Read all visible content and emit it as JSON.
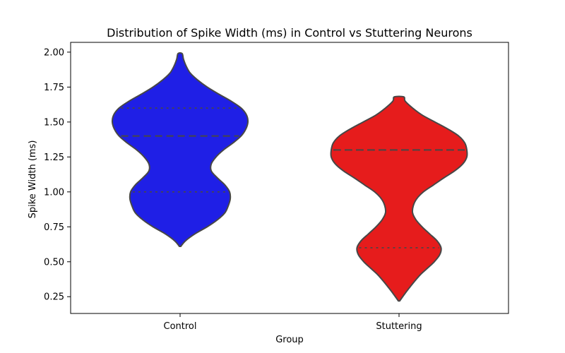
{
  "chart_data": {
    "type": "violin",
    "title": "Distribution of Spike Width (ms) in Control vs Stuttering Neurons",
    "xlabel": "Group",
    "ylabel": "Spike Width (ms)",
    "ylim": [
      0.13,
      2.07
    ],
    "yticks": [
      0.25,
      0.5,
      0.75,
      1.0,
      1.25,
      1.5,
      1.75,
      2.0
    ],
    "ytick_labels": [
      "0.25",
      "0.50",
      "0.75",
      "1.00",
      "1.25",
      "1.50",
      "1.75",
      "2.00"
    ],
    "grid": false,
    "categories": [
      "Control",
      "Stuttering"
    ],
    "series": [
      {
        "category": "Control",
        "color": "#1f1fe6",
        "min": 0.61,
        "max": 1.99,
        "quartiles": [
          1.0,
          1.4,
          1.6
        ],
        "density": [
          [
            0.61,
            0.01
          ],
          [
            0.65,
            0.08
          ],
          [
            0.7,
            0.22
          ],
          [
            0.75,
            0.4
          ],
          [
            0.8,
            0.55
          ],
          [
            0.85,
            0.66
          ],
          [
            0.9,
            0.71
          ],
          [
            0.95,
            0.74
          ],
          [
            1.0,
            0.73
          ],
          [
            1.05,
            0.66
          ],
          [
            1.1,
            0.55
          ],
          [
            1.15,
            0.46
          ],
          [
            1.2,
            0.46
          ],
          [
            1.25,
            0.53
          ],
          [
            1.3,
            0.64
          ],
          [
            1.35,
            0.78
          ],
          [
            1.4,
            0.9
          ],
          [
            1.45,
            0.97
          ],
          [
            1.5,
            1.0
          ],
          [
            1.55,
            0.98
          ],
          [
            1.6,
            0.9
          ],
          [
            1.65,
            0.75
          ],
          [
            1.7,
            0.57
          ],
          [
            1.75,
            0.4
          ],
          [
            1.8,
            0.26
          ],
          [
            1.85,
            0.15
          ],
          [
            1.9,
            0.09
          ],
          [
            1.95,
            0.05
          ],
          [
            1.99,
            0.03
          ]
        ]
      },
      {
        "category": "Stuttering",
        "color": "#e61c1c",
        "min": 0.22,
        "max": 1.68,
        "quartiles": [
          0.6,
          1.3,
          1.3
        ],
        "density": [
          [
            0.22,
            0.01
          ],
          [
            0.3,
            0.13
          ],
          [
            0.4,
            0.3
          ],
          [
            0.45,
            0.41
          ],
          [
            0.5,
            0.52
          ],
          [
            0.55,
            0.6
          ],
          [
            0.6,
            0.62
          ],
          [
            0.65,
            0.56
          ],
          [
            0.7,
            0.45
          ],
          [
            0.75,
            0.34
          ],
          [
            0.8,
            0.25
          ],
          [
            0.85,
            0.2
          ],
          [
            0.9,
            0.21
          ],
          [
            0.95,
            0.26
          ],
          [
            1.0,
            0.36
          ],
          [
            1.05,
            0.51
          ],
          [
            1.1,
            0.66
          ],
          [
            1.15,
            0.82
          ],
          [
            1.2,
            0.94
          ],
          [
            1.25,
            1.0
          ],
          [
            1.3,
            1.0
          ],
          [
            1.35,
            0.97
          ],
          [
            1.4,
            0.88
          ],
          [
            1.45,
            0.72
          ],
          [
            1.5,
            0.53
          ],
          [
            1.55,
            0.34
          ],
          [
            1.6,
            0.2
          ],
          [
            1.65,
            0.09
          ],
          [
            1.68,
            0.07
          ]
        ]
      }
    ]
  }
}
